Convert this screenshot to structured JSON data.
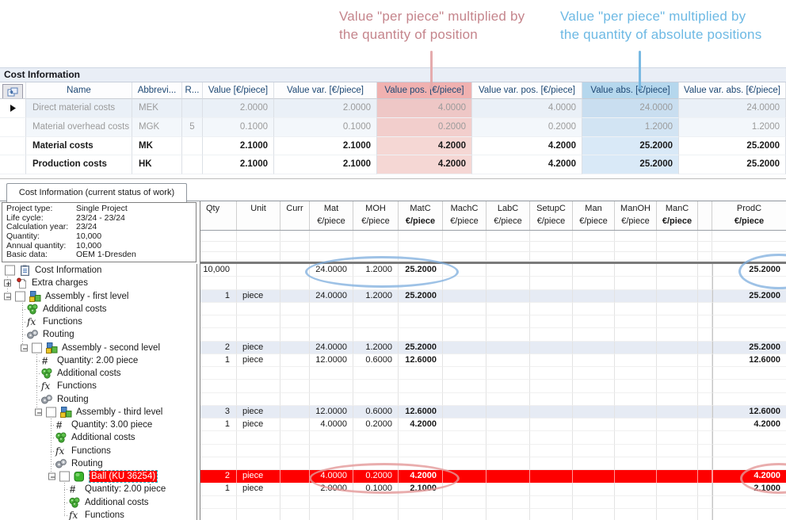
{
  "annotations": {
    "pink": {
      "line1": "Value \"per piece\" multiplied by",
      "line2": "the quantity of position",
      "color": "#c5858c"
    },
    "blue": {
      "line1": "Value \"per piece\" multiplied by",
      "line2": "the quantity of absolute positions",
      "color": "#6db9e4"
    }
  },
  "section_title": "Cost Information",
  "cost_table": {
    "columns": [
      {
        "label": "",
        "kind": "icon-button"
      },
      {
        "label": "Name"
      },
      {
        "label": "Abbrevi..."
      },
      {
        "label": "R..."
      },
      {
        "label": "Value [€/piece]"
      },
      {
        "label": "Value var. [€/piece]"
      },
      {
        "label": "Value pos. [€/piece]",
        "highlight": "pink"
      },
      {
        "label": "Value var. pos. [€/piece]"
      },
      {
        "label": "Value abs. [€/piece]",
        "highlight": "blue"
      },
      {
        "label": "Value var. abs. [€/piece]"
      }
    ],
    "rows": [
      {
        "arrow": true,
        "muted": true,
        "cells": [
          "Direct material costs",
          "MEK",
          "",
          "2.0000",
          "2.0000",
          "4.0000",
          "4.0000",
          "24.0000",
          "24.0000"
        ]
      },
      {
        "arrow": false,
        "muted": true,
        "cells": [
          "Material overhead costs",
          "MGK",
          "5",
          "0.1000",
          "0.1000",
          "0.2000",
          "0.2000",
          "1.2000",
          "1.2000"
        ]
      },
      {
        "arrow": false,
        "bold": true,
        "cells": [
          "Material costs",
          "MK",
          "",
          "2.1000",
          "2.1000",
          "4.2000",
          "4.2000",
          "25.2000",
          "25.2000"
        ]
      },
      {
        "arrow": false,
        "bold": true,
        "cells": [
          "Production costs",
          "HK",
          "",
          "2.1000",
          "2.1000",
          "4.2000",
          "4.2000",
          "25.2000",
          "25.2000"
        ]
      }
    ]
  },
  "tab": {
    "label": "Cost Information (current status of work)"
  },
  "project_info": {
    "rows": [
      [
        "Project type:",
        "Single Project"
      ],
      [
        "Life cycle:",
        "23/24 - 23/24"
      ],
      [
        "Calculation year:",
        "23/24"
      ],
      [
        "Quantity:",
        "10,000"
      ],
      [
        "Annual quantity:",
        "10,000"
      ],
      [
        "Basic data:",
        "OEM 1-Dresden"
      ]
    ]
  },
  "tree": {
    "items": [
      {
        "label": "Cost Information",
        "icon": "document",
        "checkbox": true,
        "expander": "none",
        "depth": 0,
        "selected": false
      },
      {
        "label": "Extra charges",
        "icon": "page-pin",
        "checkbox": false,
        "expander": "plus",
        "depth": 0,
        "selected": false
      },
      {
        "label": "Assembly - first level",
        "icon": "assembly",
        "checkbox": true,
        "expander": "minus",
        "depth": 0,
        "selected": false
      },
      {
        "label": "Additional costs",
        "icon": "costs",
        "checkbox": false,
        "expander": "none",
        "depth": 1,
        "selected": false
      },
      {
        "label": "Functions",
        "icon": "fx",
        "checkbox": false,
        "expander": "none",
        "depth": 1,
        "selected": false
      },
      {
        "label": "Routing",
        "icon": "routing",
        "checkbox": false,
        "expander": "none",
        "depth": 1,
        "selected": false
      },
      {
        "label": "Assembly - second level",
        "icon": "assembly",
        "checkbox": true,
        "expander": "minus",
        "depth": 1,
        "selected": false
      },
      {
        "label": "Quantity: 2.00 piece",
        "icon": "hash",
        "checkbox": false,
        "expander": "none",
        "depth": 2,
        "selected": false
      },
      {
        "label": "Additional costs",
        "icon": "costs",
        "checkbox": false,
        "expander": "none",
        "depth": 2,
        "selected": false
      },
      {
        "label": "Functions",
        "icon": "fx",
        "checkbox": false,
        "expander": "none",
        "depth": 2,
        "selected": false
      },
      {
        "label": "Routing",
        "icon": "routing",
        "checkbox": false,
        "expander": "none",
        "depth": 2,
        "selected": false
      },
      {
        "label": "Assembly - third level",
        "icon": "assembly",
        "checkbox": true,
        "expander": "minus",
        "depth": 2,
        "selected": false
      },
      {
        "label": "Quantity: 3.00 piece",
        "icon": "hash",
        "checkbox": false,
        "expander": "none",
        "depth": 3,
        "selected": false
      },
      {
        "label": "Additional costs",
        "icon": "costs",
        "checkbox": false,
        "expander": "none",
        "depth": 3,
        "selected": false
      },
      {
        "label": "Functions",
        "icon": "fx",
        "checkbox": false,
        "expander": "none",
        "depth": 3,
        "selected": false
      },
      {
        "label": "Routing",
        "icon": "routing",
        "checkbox": false,
        "expander": "none",
        "depth": 3,
        "selected": false
      },
      {
        "label": "Ball (KU 36254)",
        "icon": "ball",
        "checkbox": true,
        "expander": "minus",
        "depth": 3,
        "selected": true
      },
      {
        "label": "Quantity: 2.00 piece",
        "icon": "hash",
        "checkbox": false,
        "expander": "none",
        "depth": 4,
        "selected": false
      },
      {
        "label": "Additional costs",
        "icon": "costs",
        "checkbox": false,
        "expander": "none",
        "depth": 4,
        "selected": false
      },
      {
        "label": "Functions",
        "icon": "fx",
        "checkbox": false,
        "expander": "none",
        "depth": 4,
        "selected": false
      }
    ]
  },
  "grid": {
    "columns": [
      {
        "label": "Qty",
        "unit": "",
        "bold": false
      },
      {
        "label": "Unit",
        "unit": "",
        "bold": false
      },
      {
        "label": "Curr",
        "unit": "",
        "bold": false
      },
      {
        "label": "Mat",
        "unit": "€/piece",
        "bold": false
      },
      {
        "label": "MOH",
        "unit": "€/piece",
        "bold": false
      },
      {
        "label": "MatC",
        "unit": "€/piece",
        "bold": true
      },
      {
        "label": "MachC",
        "unit": "€/piece",
        "bold": false
      },
      {
        "label": "LabC",
        "unit": "€/piece",
        "bold": false
      },
      {
        "label": "SetupC",
        "unit": "€/piece",
        "bold": false
      },
      {
        "label": "Man",
        "unit": "€/piece",
        "bold": false
      },
      {
        "label": "ManOH",
        "unit": "€/piece",
        "bold": false
      },
      {
        "label": "ManC",
        "unit": "€/piece",
        "bold": true
      },
      {
        "label": "ProdC",
        "unit": "€/piece",
        "bold": true
      }
    ],
    "rows": [
      {
        "stripe": false,
        "red": false,
        "cells": [
          "10,000",
          "",
          "",
          "24.0000",
          "1.2000",
          "25.2000",
          "",
          "",
          "",
          "",
          "",
          "",
          "25.2000"
        ]
      },
      {
        "stripe": false,
        "red": false,
        "cells": [
          "",
          "",
          "",
          "",
          "",
          "",
          "",
          "",
          "",
          "",
          "",
          "",
          ""
        ]
      },
      {
        "stripe": true,
        "red": false,
        "cells": [
          "1",
          "piece",
          "",
          "24.0000",
          "1.2000",
          "25.2000",
          "",
          "",
          "",
          "",
          "",
          "",
          "25.2000"
        ]
      },
      {
        "stripe": false,
        "red": false,
        "cells": [
          "",
          "",
          "",
          "",
          "",
          "",
          "",
          "",
          "",
          "",
          "",
          "",
          ""
        ]
      },
      {
        "stripe": false,
        "red": false,
        "cells": [
          "",
          "",
          "",
          "",
          "",
          "",
          "",
          "",
          "",
          "",
          "",
          "",
          ""
        ]
      },
      {
        "stripe": false,
        "red": false,
        "cells": [
          "",
          "",
          "",
          "",
          "",
          "",
          "",
          "",
          "",
          "",
          "",
          "",
          ""
        ]
      },
      {
        "stripe": true,
        "red": false,
        "cells": [
          "2",
          "piece",
          "",
          "24.0000",
          "1.2000",
          "25.2000",
          "",
          "",
          "",
          "",
          "",
          "",
          "25.2000"
        ]
      },
      {
        "stripe": false,
        "red": false,
        "cells": [
          "1",
          "piece",
          "",
          "12.0000",
          "0.6000",
          "12.6000",
          "",
          "",
          "",
          "",
          "",
          "",
          "12.6000"
        ]
      },
      {
        "stripe": false,
        "red": false,
        "cells": [
          "",
          "",
          "",
          "",
          "",
          "",
          "",
          "",
          "",
          "",
          "",
          "",
          ""
        ]
      },
      {
        "stripe": false,
        "red": false,
        "cells": [
          "",
          "",
          "",
          "",
          "",
          "",
          "",
          "",
          "",
          "",
          "",
          "",
          ""
        ]
      },
      {
        "stripe": false,
        "red": false,
        "cells": [
          "",
          "",
          "",
          "",
          "",
          "",
          "",
          "",
          "",
          "",
          "",
          "",
          ""
        ]
      },
      {
        "stripe": true,
        "red": false,
        "cells": [
          "3",
          "piece",
          "",
          "12.0000",
          "0.6000",
          "12.6000",
          "",
          "",
          "",
          "",
          "",
          "",
          "12.6000"
        ]
      },
      {
        "stripe": false,
        "red": false,
        "cells": [
          "1",
          "piece",
          "",
          "4.0000",
          "0.2000",
          "4.2000",
          "",
          "",
          "",
          "",
          "",
          "",
          "4.2000"
        ]
      },
      {
        "stripe": false,
        "red": false,
        "cells": [
          "",
          "",
          "",
          "",
          "",
          "",
          "",
          "",
          "",
          "",
          "",
          "",
          ""
        ]
      },
      {
        "stripe": false,
        "red": false,
        "cells": [
          "",
          "",
          "",
          "",
          "",
          "",
          "",
          "",
          "",
          "",
          "",
          "",
          ""
        ]
      },
      {
        "stripe": false,
        "red": false,
        "cells": [
          "",
          "",
          "",
          "",
          "",
          "",
          "",
          "",
          "",
          "",
          "",
          "",
          ""
        ]
      },
      {
        "stripe": false,
        "red": true,
        "cells": [
          "2",
          "piece",
          "",
          "4.0000",
          "0.2000",
          "4.2000",
          "",
          "",
          "",
          "",
          "",
          "",
          "4.2000"
        ]
      },
      {
        "stripe": false,
        "red": false,
        "cells": [
          "1",
          "piece",
          "",
          "2.0000",
          "0.1000",
          "2.1000",
          "",
          "",
          "",
          "",
          "",
          "",
          "2.1000"
        ]
      },
      {
        "stripe": false,
        "red": false,
        "cells": [
          "",
          "",
          "",
          "",
          "",
          "",
          "",
          "",
          "",
          "",
          "",
          "",
          ""
        ]
      },
      {
        "stripe": false,
        "red": false,
        "cells": [
          "",
          "",
          "",
          "",
          "",
          "",
          "",
          "",
          "",
          "",
          "",
          "",
          ""
        ]
      }
    ]
  }
}
